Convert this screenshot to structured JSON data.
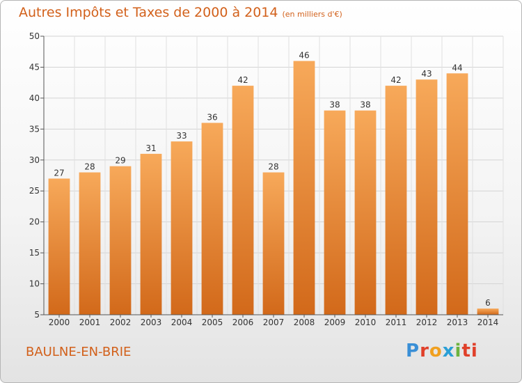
{
  "title": "Autres Impôts et Taxes de 2000 à 2014",
  "unit": "(en milliers d'€)",
  "city": "BAULNE-EN-BRIE",
  "logo": [
    "P",
    "r",
    "o",
    "x",
    "i",
    "ti"
  ],
  "colors": {
    "bar_top": "#f7a95a",
    "bar_bottom": "#d2691a",
    "title": "#d2601a"
  },
  "chart_data": {
    "type": "bar",
    "categories": [
      "2000",
      "2001",
      "2002",
      "2003",
      "2004",
      "2005",
      "2006",
      "2007",
      "2008",
      "2009",
      "2010",
      "2011",
      "2012",
      "2013",
      "2014"
    ],
    "values": [
      27,
      28,
      29,
      31,
      33,
      36,
      42,
      28,
      46,
      38,
      38,
      42,
      43,
      44,
      6
    ],
    "ylim": [
      5,
      50
    ],
    "yticks": [
      5,
      10,
      15,
      20,
      25,
      30,
      35,
      40,
      45,
      50
    ],
    "grid": true,
    "xlabel": "",
    "ylabel": ""
  }
}
